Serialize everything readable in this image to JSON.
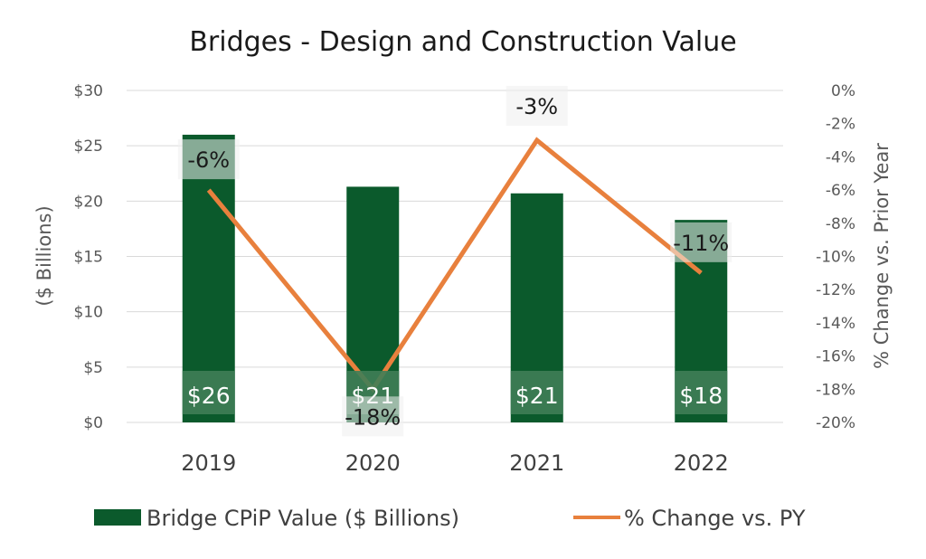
{
  "chart_data": {
    "type": "bar",
    "title": "Bridges - Design and Construction Value",
    "categories": [
      "2019",
      "2020",
      "2021",
      "2022"
    ],
    "series": [
      {
        "name": "Bridge CPiP Value ($ Billions)",
        "kind": "bar",
        "axis": "left",
        "values": [
          26,
          21.3,
          20.7,
          18.3
        ],
        "data_labels": [
          "$26",
          "$21",
          "$21",
          "$18"
        ]
      },
      {
        "name": "% Change vs. PY",
        "kind": "line",
        "axis": "right",
        "values": [
          -6,
          -18,
          -3,
          -11
        ],
        "data_labels": [
          "-6%",
          "-18%",
          "-3%",
          "-11%"
        ]
      }
    ],
    "y_left": {
      "label": "($ Billions)",
      "ylim": [
        0,
        30
      ],
      "ticks": [
        "$0",
        "$5",
        "$10",
        "$15",
        "$20",
        "$25",
        "$30"
      ]
    },
    "y_right": {
      "label": "% Change vs. Prior Year",
      "ylim": [
        -20,
        0
      ],
      "ticks": [
        "-20%",
        "-18%",
        "-16%",
        "-14%",
        "-12%",
        "-10%",
        "-8%",
        "-6%",
        "-4%",
        "-2%",
        "0%"
      ]
    },
    "grid": true,
    "legend_position": "bottom",
    "colors": {
      "bar": "#0b5a2c",
      "line": "#e8803d",
      "bar_label_bg": "#3f7d56",
      "pct_label_bg": "#efefef"
    }
  }
}
